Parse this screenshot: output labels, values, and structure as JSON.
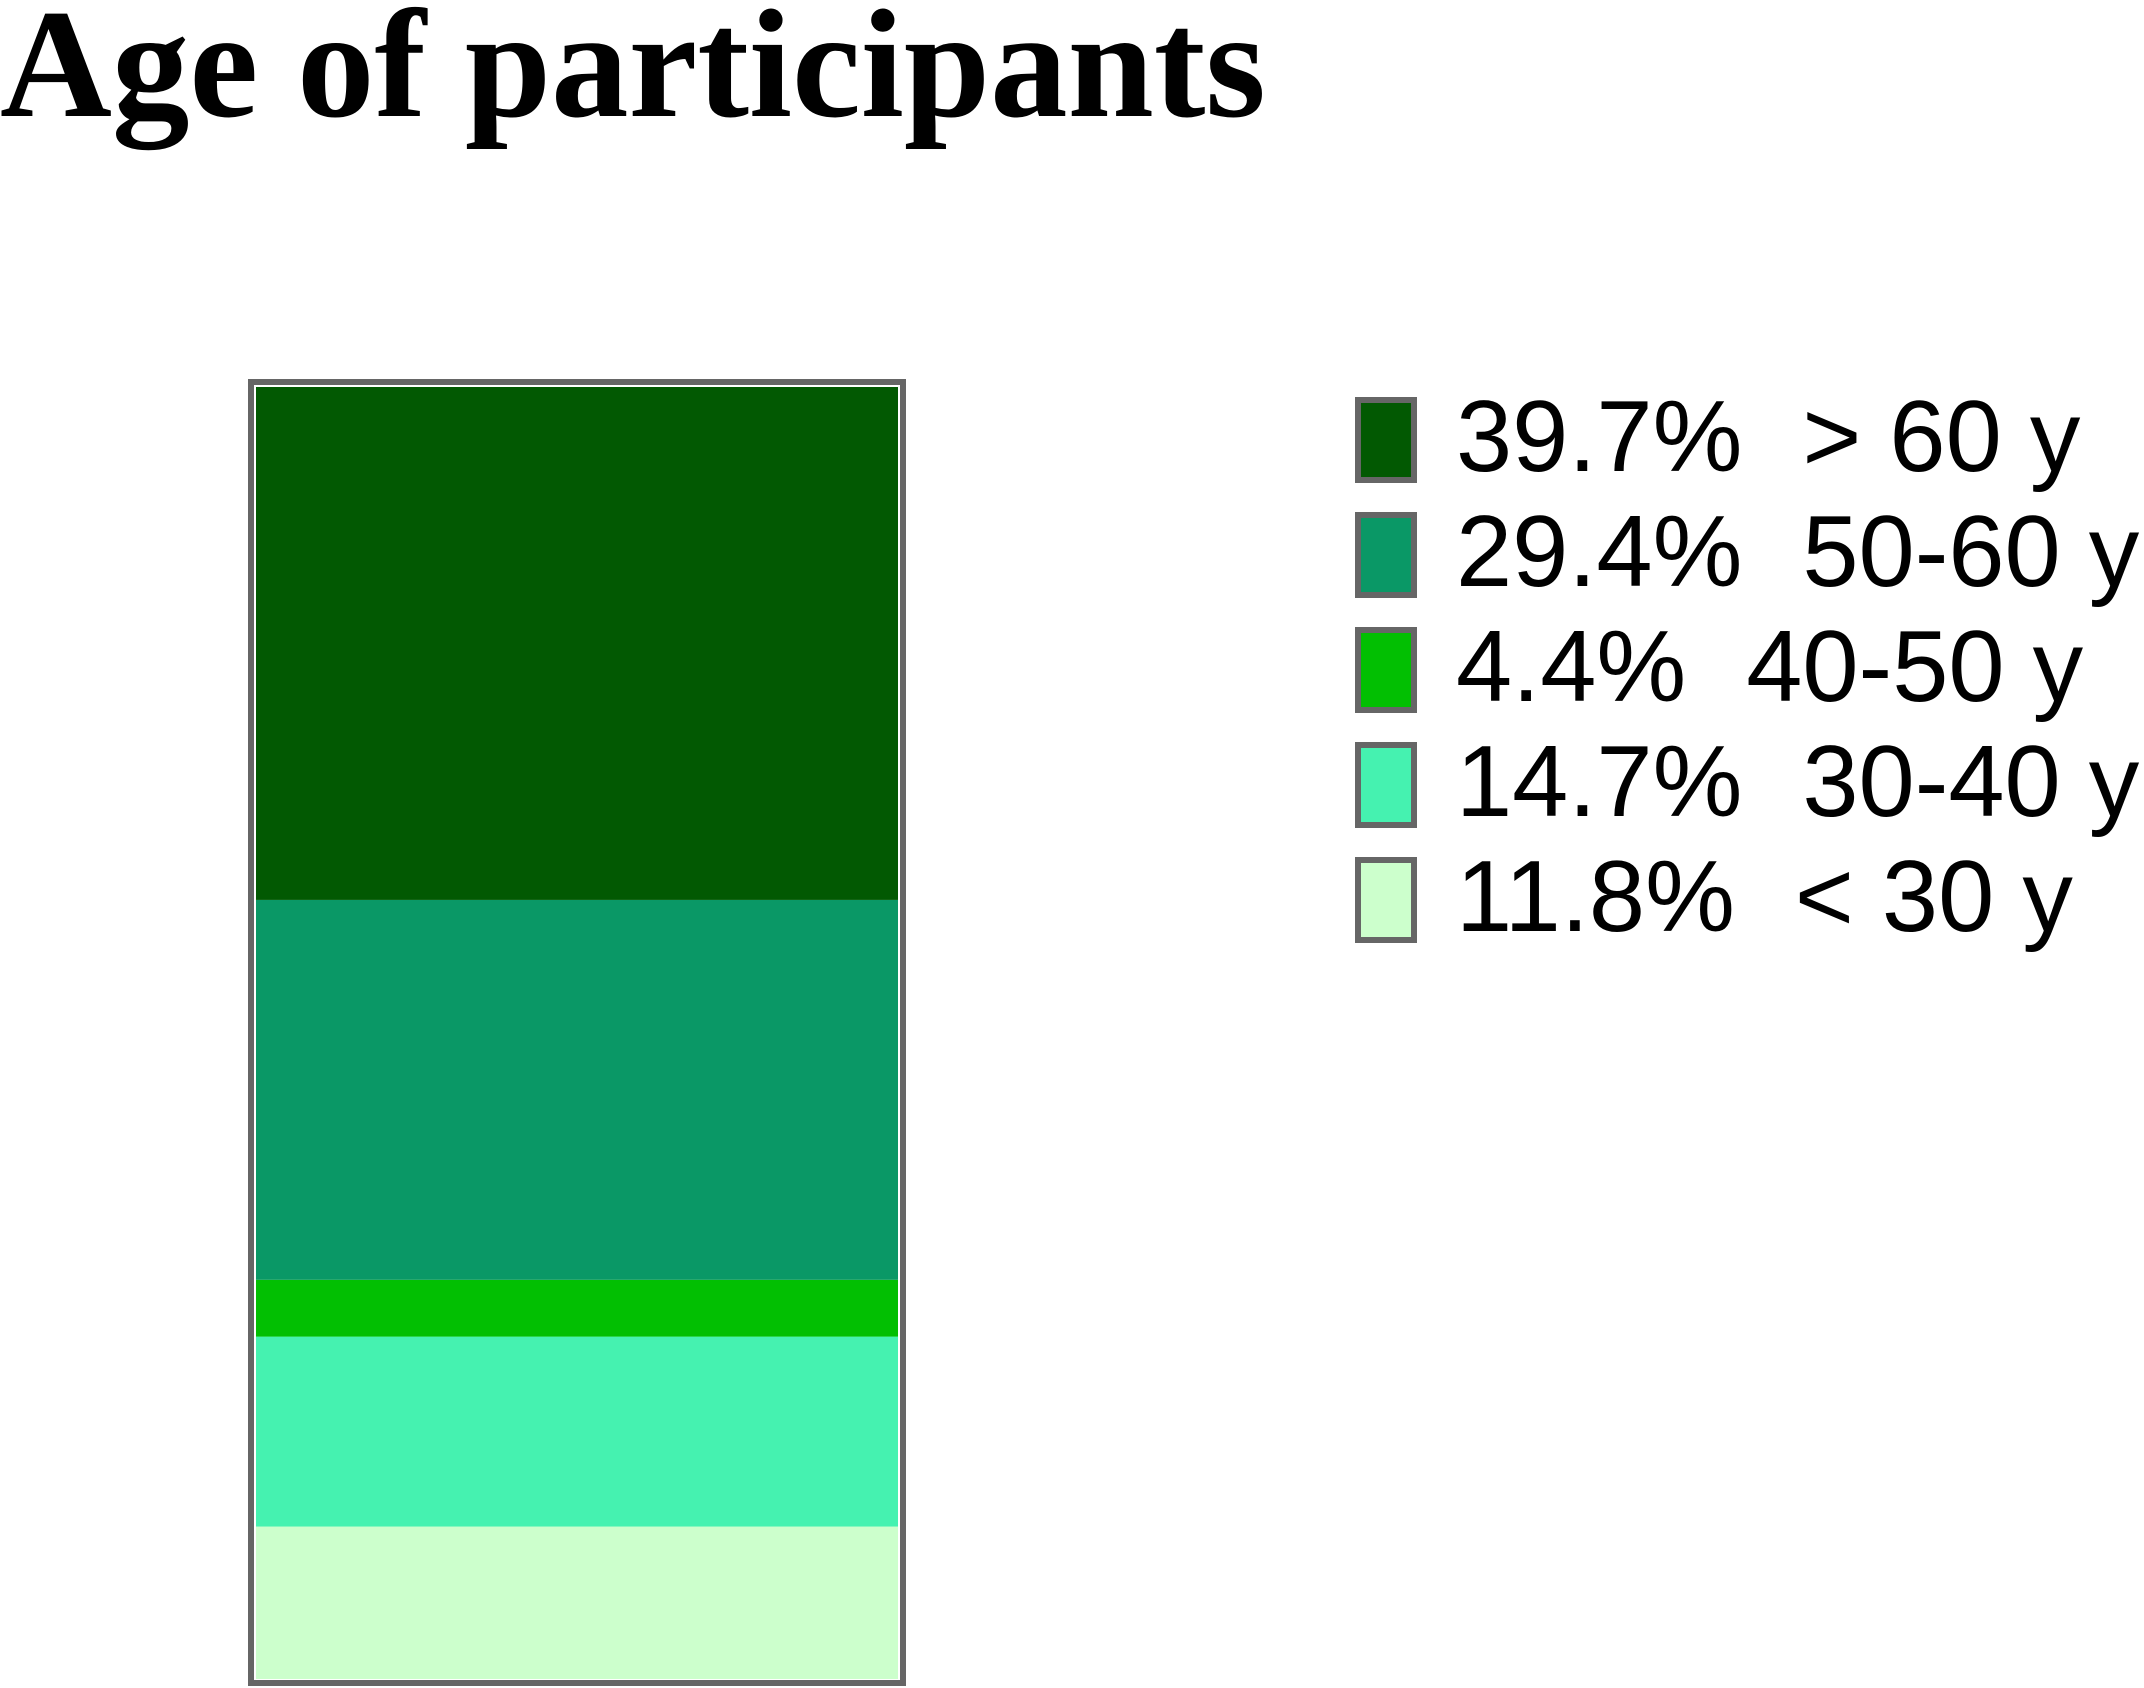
{
  "chart_data": {
    "type": "stacked_bar",
    "title": "Age of participants",
    "ylim": [
      0,
      100
    ],
    "series": [
      {
        "name": "> 60 y",
        "color": "#025902",
        "values": [
          39.7
        ],
        "value_labels": [
          "39.7%"
        ]
      },
      {
        "name": "50-60 y",
        "color": "#0a9866",
        "values": [
          29.4
        ],
        "value_labels": [
          "29.4%"
        ]
      },
      {
        "name": "40-50 y",
        "color": "#02bf02",
        "values": [
          4.4
        ],
        "value_labels": [
          "4.4%"
        ]
      },
      {
        "name": "30-40 y",
        "color": "#45f2b0",
        "values": [
          14.7
        ],
        "value_labels": [
          "14.7%"
        ]
      },
      {
        "name": "< 30 y",
        "color": "#ccffcc",
        "values": [
          11.8
        ],
        "value_labels": [
          "11.8%"
        ]
      }
    ]
  }
}
